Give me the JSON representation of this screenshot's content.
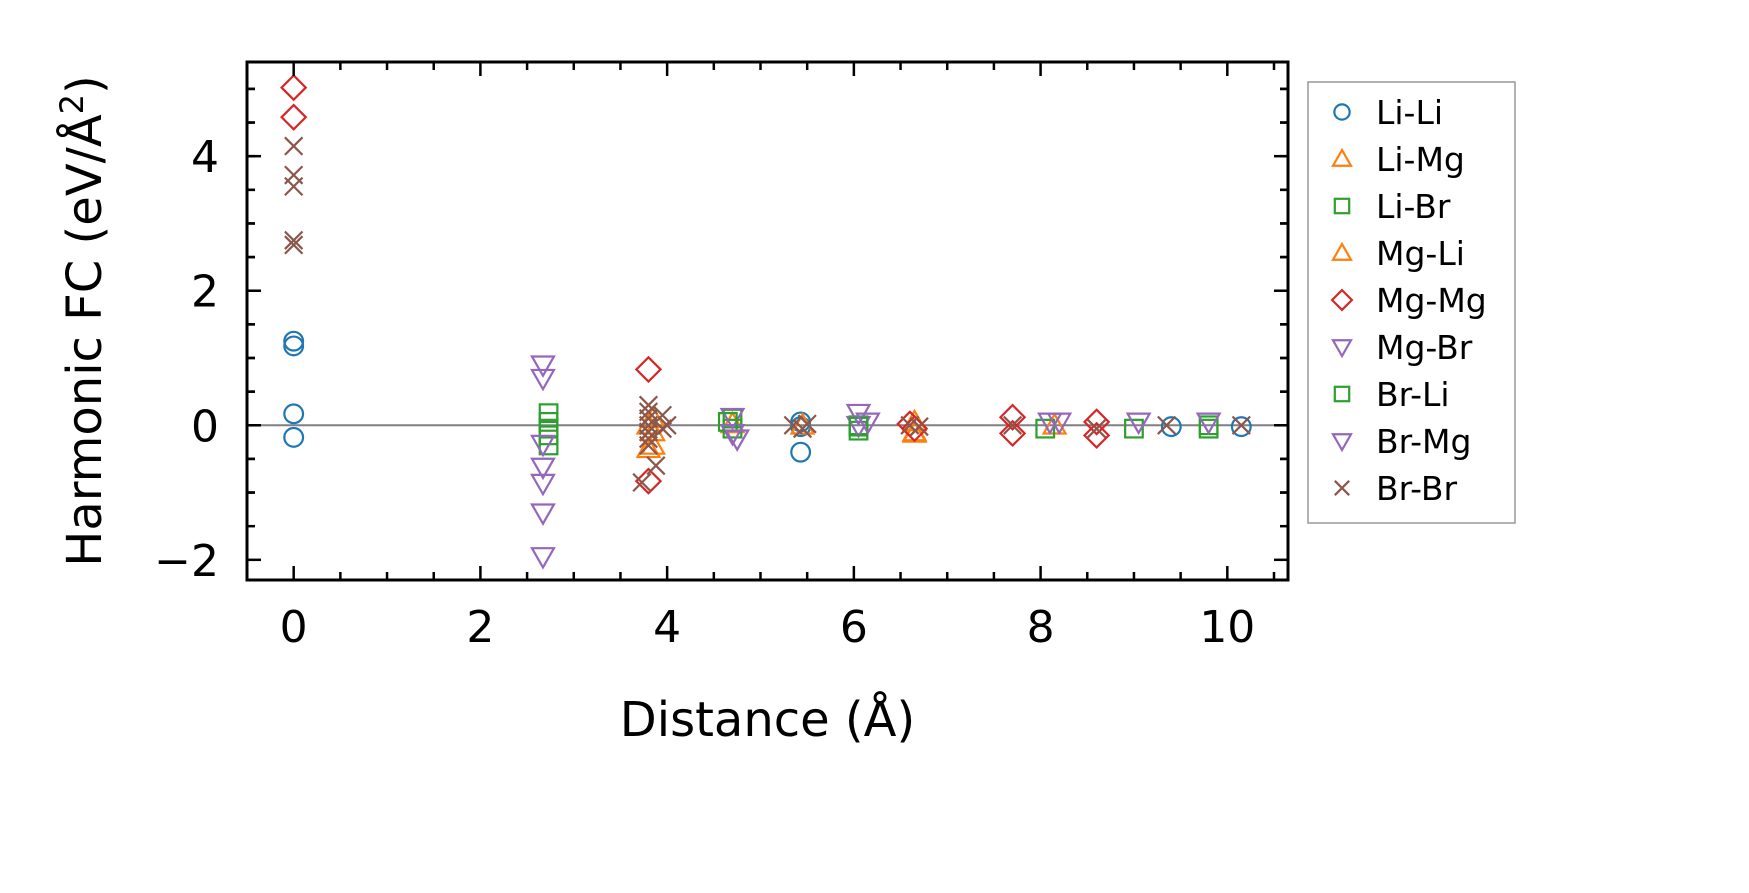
{
  "chart_data": {
    "type": "scatter",
    "xlabel": "Distance (Å)",
    "ylabel": "Harmonic FC (eV/Å²)",
    "ylabel_parts": [
      "Harmonic FC (eV/Å",
      "2",
      ")"
    ],
    "xlim": [
      -0.5,
      10.65
    ],
    "ylim": [
      -2.3,
      5.4
    ],
    "x_ticks": [
      0,
      2,
      4,
      6,
      8,
      10
    ],
    "x_tick_labels": [
      "0",
      "2",
      "4",
      "6",
      "8",
      "10"
    ],
    "y_ticks": [
      -2,
      0,
      2,
      4
    ],
    "y_tick_labels": [
      "−2",
      "0",
      "2",
      "4"
    ],
    "zero_line": true,
    "grid": false,
    "legend_position": "outside-right",
    "series": [
      {
        "name": "Li-Li",
        "marker": "circle",
        "color": "#1f77b4",
        "points": [
          [
            0,
            1.25
          ],
          [
            0,
            1.18
          ],
          [
            0,
            0.17
          ],
          [
            0,
            -0.18
          ],
          [
            5.43,
            0.05
          ],
          [
            5.43,
            -0.02
          ],
          [
            5.43,
            -0.4
          ],
          [
            9.4,
            -0.02
          ],
          [
            10.15,
            -0.02
          ]
        ]
      },
      {
        "name": "Li-Mg",
        "marker": "triangle-up",
        "color": "#ff7f0e",
        "points": [
          [
            3.85,
            0.1
          ],
          [
            3.85,
            -0.1
          ],
          [
            3.85,
            -0.3
          ],
          [
            4.7,
            0.02
          ],
          [
            5.45,
            0.0
          ],
          [
            6.65,
            -0.1
          ],
          [
            8.15,
            0.0
          ]
        ]
      },
      {
        "name": "Li-Br",
        "marker": "square",
        "color": "#2ca02c",
        "points": [
          [
            2.73,
            0.18
          ],
          [
            2.73,
            0.05
          ],
          [
            2.73,
            -0.05
          ],
          [
            2.73,
            -0.15
          ],
          [
            2.73,
            -0.3
          ],
          [
            4.7,
            0.1
          ],
          [
            4.7,
            -0.05
          ],
          [
            6.05,
            0.0
          ],
          [
            6.05,
            -0.08
          ],
          [
            8.05,
            -0.05
          ],
          [
            9.0,
            -0.05
          ],
          [
            9.8,
            -0.05
          ]
        ]
      },
      {
        "name": "Mg-Li",
        "marker": "triangle-up",
        "color": "#ff7f0e",
        "points": [
          [
            3.8,
            0.0
          ],
          [
            3.8,
            -0.35
          ],
          [
            6.65,
            0.05
          ],
          [
            6.65,
            -0.12
          ]
        ]
      },
      {
        "name": "Mg-Mg",
        "marker": "diamond",
        "color": "#d62728",
        "points": [
          [
            0,
            5.02
          ],
          [
            0,
            4.58
          ],
          [
            3.8,
            0.83
          ],
          [
            3.8,
            -0.83
          ],
          [
            6.6,
            0.02
          ],
          [
            6.65,
            -0.05
          ],
          [
            7.7,
            0.12
          ],
          [
            7.7,
            -0.12
          ],
          [
            8.6,
            0.05
          ],
          [
            8.6,
            -0.15
          ]
        ]
      },
      {
        "name": "Mg-Br",
        "marker": "triangle-down",
        "color": "#9467bd",
        "points": [
          [
            2.67,
            0.9
          ],
          [
            2.67,
            0.7
          ],
          [
            2.67,
            -0.28
          ],
          [
            2.67,
            -0.62
          ],
          [
            2.67,
            -0.86
          ],
          [
            2.67,
            -1.3
          ],
          [
            2.67,
            -1.95
          ],
          [
            4.7,
            0.12
          ],
          [
            4.7,
            -0.12
          ],
          [
            6.05,
            0.18
          ],
          [
            6.05,
            0.0
          ]
        ]
      },
      {
        "name": "Br-Li",
        "marker": "square",
        "color": "#2ca02c",
        "points": [
          [
            4.65,
            0.05
          ],
          [
            6.05,
            -0.02
          ],
          [
            9.8,
            0.0
          ]
        ]
      },
      {
        "name": "Br-Mg",
        "marker": "triangle-down",
        "color": "#9467bd",
        "points": [
          [
            4.75,
            -0.2
          ],
          [
            6.15,
            0.05
          ],
          [
            8.1,
            0.05
          ],
          [
            8.2,
            0.05
          ],
          [
            9.05,
            0.05
          ],
          [
            9.8,
            0.05
          ]
        ]
      },
      {
        "name": "Br-Br",
        "marker": "x",
        "color": "#8c564b",
        "points": [
          [
            0,
            4.15
          ],
          [
            0,
            3.72
          ],
          [
            0,
            3.55
          ],
          [
            0,
            2.75
          ],
          [
            0,
            2.68
          ],
          [
            3.73,
            -0.85
          ],
          [
            3.8,
            0.3
          ],
          [
            3.8,
            0.2
          ],
          [
            3.8,
            0.1
          ],
          [
            3.8,
            0.0
          ],
          [
            3.8,
            -0.1
          ],
          [
            3.8,
            -0.2
          ],
          [
            3.8,
            -0.3
          ],
          [
            3.88,
            -0.6
          ],
          [
            3.95,
            0.15
          ],
          [
            3.95,
            -0.05
          ],
          [
            4.0,
            0.0
          ],
          [
            5.35,
            0.0
          ],
          [
            5.45,
            -0.05
          ],
          [
            5.5,
            0.02
          ],
          [
            6.6,
            0.0
          ],
          [
            6.7,
            -0.02
          ],
          [
            7.7,
            0.0
          ],
          [
            8.6,
            -0.05
          ],
          [
            9.35,
            0.0
          ],
          [
            10.15,
            0.0
          ]
        ]
      }
    ]
  }
}
